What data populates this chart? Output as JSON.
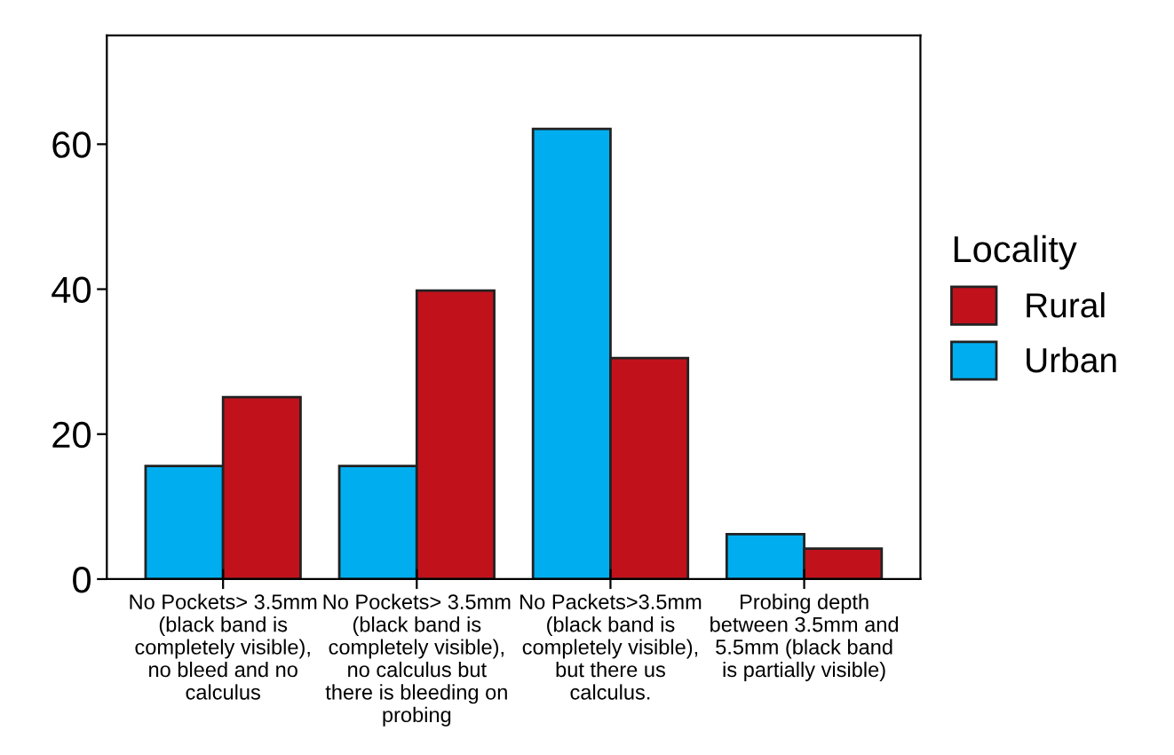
{
  "chart_data": {
    "type": "bar",
    "categories": [
      "No Pockets> 3.5mm\n(black band is\ncompletely visible),\nno bleed and no\ncalculus",
      "No Pockets> 3.5mm\n(black band is\ncompletely visible),\nno calculus but\nthere is bleeding on\nprobing",
      "No Packets>3.5mm\n(black band is\ncompletely visible),\nbut there us\ncalculus.",
      "Probing depth\nbetween 3.5mm and\n5.5mm (black band\nis partially visible)"
    ],
    "series": [
      {
        "name": "Urban",
        "color": "#00aeef",
        "values": [
          15.6,
          15.6,
          62.1,
          6.2
        ]
      },
      {
        "name": "Rural",
        "color": "#c1121c",
        "values": [
          25.1,
          39.8,
          30.5,
          4.2
        ]
      }
    ],
    "legend_title": "Locality",
    "legend": "right",
    "ylim": [
      0,
      75
    ],
    "yticks": [
      0,
      20,
      40,
      60
    ],
    "grid": false
  }
}
